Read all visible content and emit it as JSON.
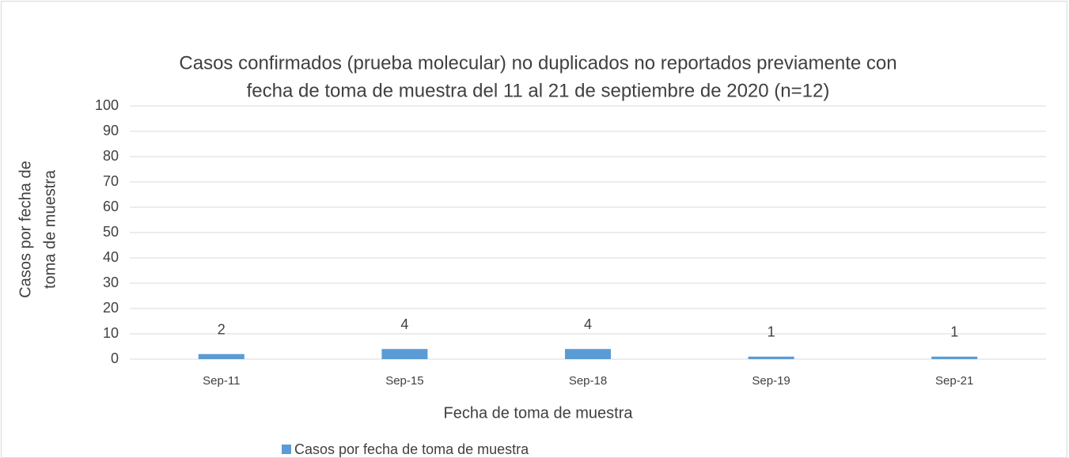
{
  "chart_data": {
    "type": "bar",
    "title": [
      "Casos confirmados (prueba molecular) no duplicados no reportados previamente con",
      "fecha de toma de muestra del 11 al 21 de septiembre de 2020  (n=12)"
    ],
    "x_label": "Fecha de toma de muestra",
    "y_label": [
      "Casos por fecha de",
      "toma de muestra"
    ],
    "categories": [
      "Sep-11",
      "Sep-15",
      "Sep-18",
      "Sep-19",
      "Sep-21"
    ],
    "series": [
      {
        "name": "Casos por fecha de toma de muestra",
        "color": "#5b9bd5",
        "values": [
          2,
          4,
          4,
          1,
          1
        ]
      }
    ],
    "ylim": [
      0,
      100
    ],
    "yticks": [
      0,
      10,
      20,
      30,
      40,
      50,
      60,
      70,
      80,
      90,
      100
    ],
    "grid": true,
    "legend": "bottom"
  }
}
